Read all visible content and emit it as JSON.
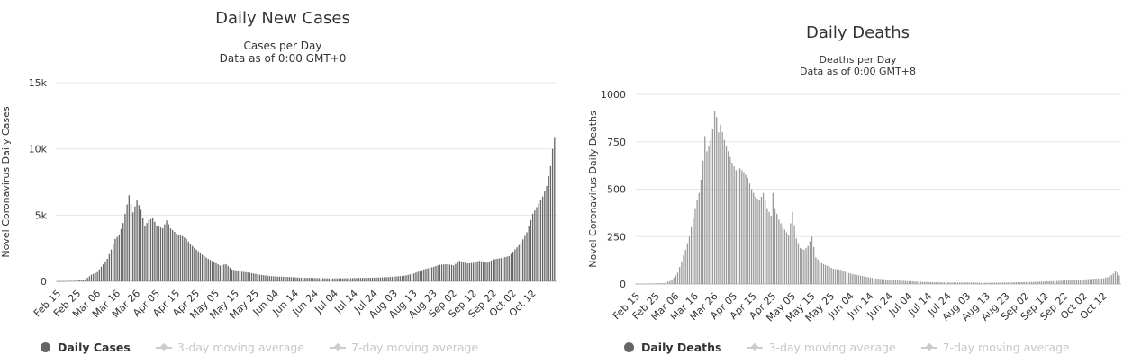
{
  "chart_data": [
    {
      "type": "bar",
      "title": "Daily New Cases",
      "subtitle_lines": [
        "Cases per Day",
        "Data as of 0:00 GMT+0"
      ],
      "ylabel": "Novel Coronavirus Daily Cases",
      "ylim": [
        0,
        15000
      ],
      "y_ticks": [
        0,
        5000,
        10000,
        15000
      ],
      "y_tick_labels": [
        "0",
        "5k",
        "10k",
        "15k"
      ],
      "x_tick_labels": [
        "Feb 15",
        "Feb 25",
        "Mar 06",
        "Mar 16",
        "Mar 26",
        "Apr 05",
        "Apr 15",
        "Apr 25",
        "May 05",
        "May 15",
        "May 25",
        "Jun 04",
        "Jun 14",
        "Jun 24",
        "Jul 04",
        "Jul 14",
        "Jul 24",
        "Aug 03",
        "Aug 13",
        "Aug 23",
        "Sep 02",
        "Sep 12",
        "Sep 22",
        "Oct 02",
        "Oct 12"
      ],
      "x_tick_day_index": [
        0,
        10,
        20,
        30,
        40,
        50,
        60,
        70,
        80,
        90,
        100,
        110,
        120,
        130,
        140,
        150,
        160,
        170,
        180,
        190,
        200,
        210,
        220,
        230,
        240
      ],
      "grid": true,
      "bar_color": "#666666",
      "keypoints": [
        [
          0,
          0
        ],
        [
          10,
          50
        ],
        [
          14,
          150
        ],
        [
          17,
          500
        ],
        [
          20,
          700
        ],
        [
          23,
          1300
        ],
        [
          25,
          1700
        ],
        [
          27,
          2400
        ],
        [
          29,
          3200
        ],
        [
          31,
          3500
        ],
        [
          33,
          4400
        ],
        [
          35,
          5800
        ],
        [
          36,
          6500
        ],
        [
          38,
          5200
        ],
        [
          40,
          6100
        ],
        [
          42,
          5400
        ],
        [
          44,
          4200
        ],
        [
          46,
          4600
        ],
        [
          48,
          4800
        ],
        [
          50,
          4200
        ],
        [
          53,
          4000
        ],
        [
          55,
          4600
        ],
        [
          57,
          4000
        ],
        [
          60,
          3600
        ],
        [
          63,
          3400
        ],
        [
          65,
          3200
        ],
        [
          67,
          2800
        ],
        [
          70,
          2400
        ],
        [
          73,
          2000
        ],
        [
          76,
          1700
        ],
        [
          79,
          1450
        ],
        [
          82,
          1200
        ],
        [
          85,
          1300
        ],
        [
          88,
          900
        ],
        [
          92,
          750
        ],
        [
          97,
          650
        ],
        [
          102,
          500
        ],
        [
          107,
          400
        ],
        [
          112,
          350
        ],
        [
          117,
          330
        ],
        [
          122,
          280
        ],
        [
          130,
          250
        ],
        [
          140,
          220
        ],
        [
          150,
          250
        ],
        [
          160,
          280
        ],
        [
          168,
          330
        ],
        [
          175,
          420
        ],
        [
          180,
          600
        ],
        [
          185,
          900
        ],
        [
          190,
          1100
        ],
        [
          193,
          1250
        ],
        [
          197,
          1300
        ],
        [
          200,
          1200
        ],
        [
          203,
          1550
        ],
        [
          207,
          1350
        ],
        [
          210,
          1400
        ],
        [
          213,
          1550
        ],
        [
          217,
          1400
        ],
        [
          220,
          1650
        ],
        [
          224,
          1750
        ],
        [
          228,
          1900
        ],
        [
          231,
          2400
        ],
        [
          234,
          2900
        ],
        [
          237,
          3700
        ],
        [
          240,
          5100
        ],
        [
          242,
          5600
        ],
        [
          245,
          6400
        ],
        [
          247,
          7200
        ],
        [
          249,
          8700
        ],
        [
          250,
          10000
        ],
        [
          251,
          10900
        ]
      ],
      "legend": [
        "Daily Cases",
        "3-day moving average",
        "7-day moving average"
      ]
    },
    {
      "type": "bar",
      "title": "Daily Deaths",
      "subtitle_lines": [
        "Deaths per Day",
        "Data as of 0:00 GMT+8"
      ],
      "ylabel": "Novel Coronavirus Daily Deaths",
      "ylim": [
        0,
        1000
      ],
      "y_ticks": [
        0,
        250,
        500,
        750,
        1000
      ],
      "y_tick_labels": [
        "0",
        "250",
        "500",
        "750",
        "1000"
      ],
      "x_tick_labels": [
        "Feb 15",
        "Feb 25",
        "Mar 06",
        "Mar 16",
        "Mar 26",
        "Apr 05",
        "Apr 15",
        "Apr 25",
        "May 05",
        "May 15",
        "May 25",
        "Jun 04",
        "Jun 14",
        "Jun 24",
        "Jul 04",
        "Jul 14",
        "Jul 24",
        "Aug 03",
        "Aug 13",
        "Aug 23",
        "Sep 02",
        "Sep 12",
        "Sep 22",
        "Oct 02",
        "Oct 12"
      ],
      "x_tick_day_index": [
        0,
        10,
        20,
        30,
        40,
        50,
        60,
        70,
        80,
        90,
        100,
        110,
        120,
        130,
        140,
        150,
        160,
        170,
        180,
        190,
        200,
        210,
        220,
        230,
        240
      ],
      "grid": true,
      "bar_color": "#9a9a9a",
      "keypoints": [
        [
          0,
          0
        ],
        [
          14,
          5
        ],
        [
          18,
          20
        ],
        [
          21,
          60
        ],
        [
          23,
          120
        ],
        [
          25,
          180
        ],
        [
          27,
          250
        ],
        [
          29,
          350
        ],
        [
          30,
          400
        ],
        [
          32,
          480
        ],
        [
          33,
          550
        ],
        [
          34,
          650
        ],
        [
          35,
          780
        ],
        [
          36,
          700
        ],
        [
          38,
          760
        ],
        [
          39,
          820
        ],
        [
          40,
          910
        ],
        [
          41,
          880
        ],
        [
          42,
          800
        ],
        [
          43,
          840
        ],
        [
          45,
          760
        ],
        [
          47,
          700
        ],
        [
          49,
          640
        ],
        [
          51,
          600
        ],
        [
          53,
          610
        ],
        [
          55,
          590
        ],
        [
          57,
          560
        ],
        [
          59,
          500
        ],
        [
          61,
          460
        ],
        [
          63,
          440
        ],
        [
          65,
          480
        ],
        [
          67,
          400
        ],
        [
          69,
          360
        ],
        [
          70,
          480
        ],
        [
          71,
          400
        ],
        [
          73,
          340
        ],
        [
          75,
          300
        ],
        [
          78,
          260
        ],
        [
          80,
          380
        ],
        [
          82,
          240
        ],
        [
          84,
          190
        ],
        [
          86,
          180
        ],
        [
          88,
          200
        ],
        [
          90,
          250
        ],
        [
          92,
          140
        ],
        [
          95,
          110
        ],
        [
          98,
          95
        ],
        [
          101,
          80
        ],
        [
          105,
          75
        ],
        [
          108,
          60
        ],
        [
          112,
          50
        ],
        [
          117,
          40
        ],
        [
          122,
          30
        ],
        [
          130,
          22
        ],
        [
          140,
          15
        ],
        [
          150,
          10
        ],
        [
          160,
          8
        ],
        [
          170,
          8
        ],
        [
          180,
          6
        ],
        [
          190,
          8
        ],
        [
          200,
          10
        ],
        [
          210,
          14
        ],
        [
          215,
          16
        ],
        [
          220,
          18
        ],
        [
          225,
          22
        ],
        [
          230,
          24
        ],
        [
          235,
          28
        ],
        [
          240,
          30
        ],
        [
          243,
          40
        ],
        [
          245,
          55
        ],
        [
          246,
          70
        ],
        [
          247,
          60
        ],
        [
          248,
          45
        ]
      ],
      "legend": [
        "Daily Deaths",
        "3-day moving average",
        "7-day moving average"
      ]
    }
  ]
}
